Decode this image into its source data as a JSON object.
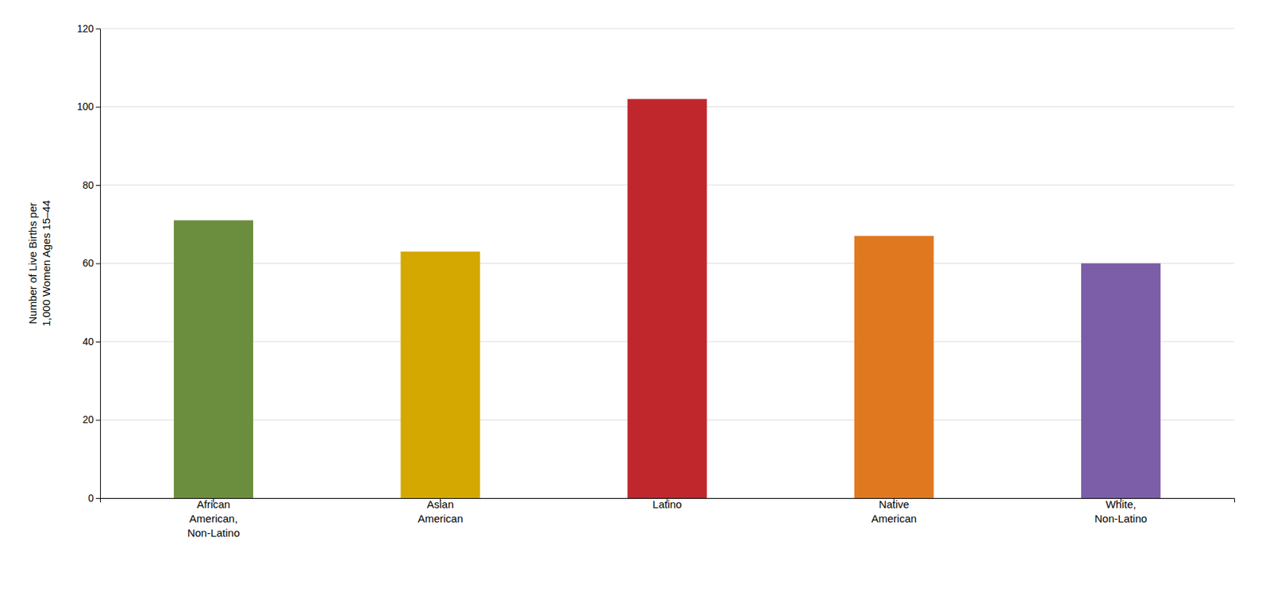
{
  "chart_data": {
    "type": "bar",
    "categories": [
      "African\nAmerican,\nNon-Latino",
      "Asian\nAmerican",
      "Latino",
      "Native\nAmerican",
      "White,\nNon-Latino"
    ],
    "values": [
      71,
      63,
      102,
      67,
      60
    ],
    "colors": [
      "#6b8e3e",
      "#d4a800",
      "#c0272d",
      "#e07820",
      "#7b5ea7"
    ],
    "ylabel": "Number of Live Births per\n1,000 Women Ages 15–44",
    "ylim": [
      0,
      120
    ],
    "yticks": [
      0,
      20,
      40,
      60,
      80,
      100,
      120
    ],
    "grid": true
  }
}
